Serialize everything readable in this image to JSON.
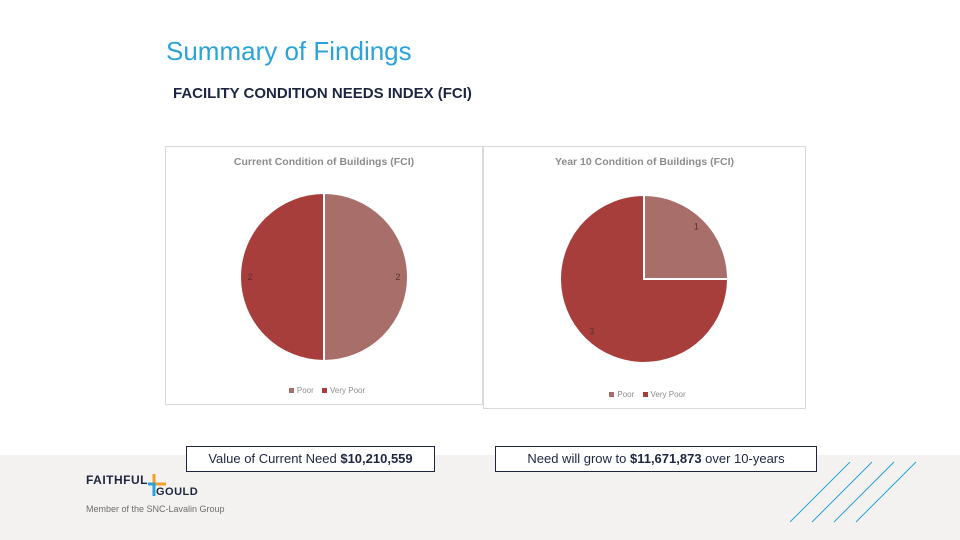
{
  "slide": {
    "title": "Summary of Findings",
    "subtitle": "FACILITY CONDITION NEEDS INDEX (FCI)",
    "callouts": {
      "current_prefix": "Value of Current Need ",
      "current_value": "$10,210,559",
      "future_prefix": "Need will grow to ",
      "future_value": "$11,671,873",
      "future_suffix": " over 10-years"
    },
    "logo": {
      "line1": "FAITHFUL",
      "line2": "GOULD",
      "tagline": "Member of the SNC-Lavalin Group"
    }
  },
  "colors": {
    "title": "#2aa3d8",
    "navy": "#1d2540",
    "poor": "#a86e6a",
    "very_poor": "#a83e3b"
  },
  "chart_data": [
    {
      "type": "pie",
      "title": "Current Condition of Buildings (FCI)",
      "categories": [
        "Poor",
        "Very Poor"
      ],
      "values": [
        2,
        2
      ],
      "legend": "bottom"
    },
    {
      "type": "pie",
      "title": "Year 10 Condition of Buildings (FCI)",
      "categories": [
        "Poor",
        "Very Poor"
      ],
      "values": [
        1,
        3
      ],
      "legend": "bottom"
    }
  ]
}
